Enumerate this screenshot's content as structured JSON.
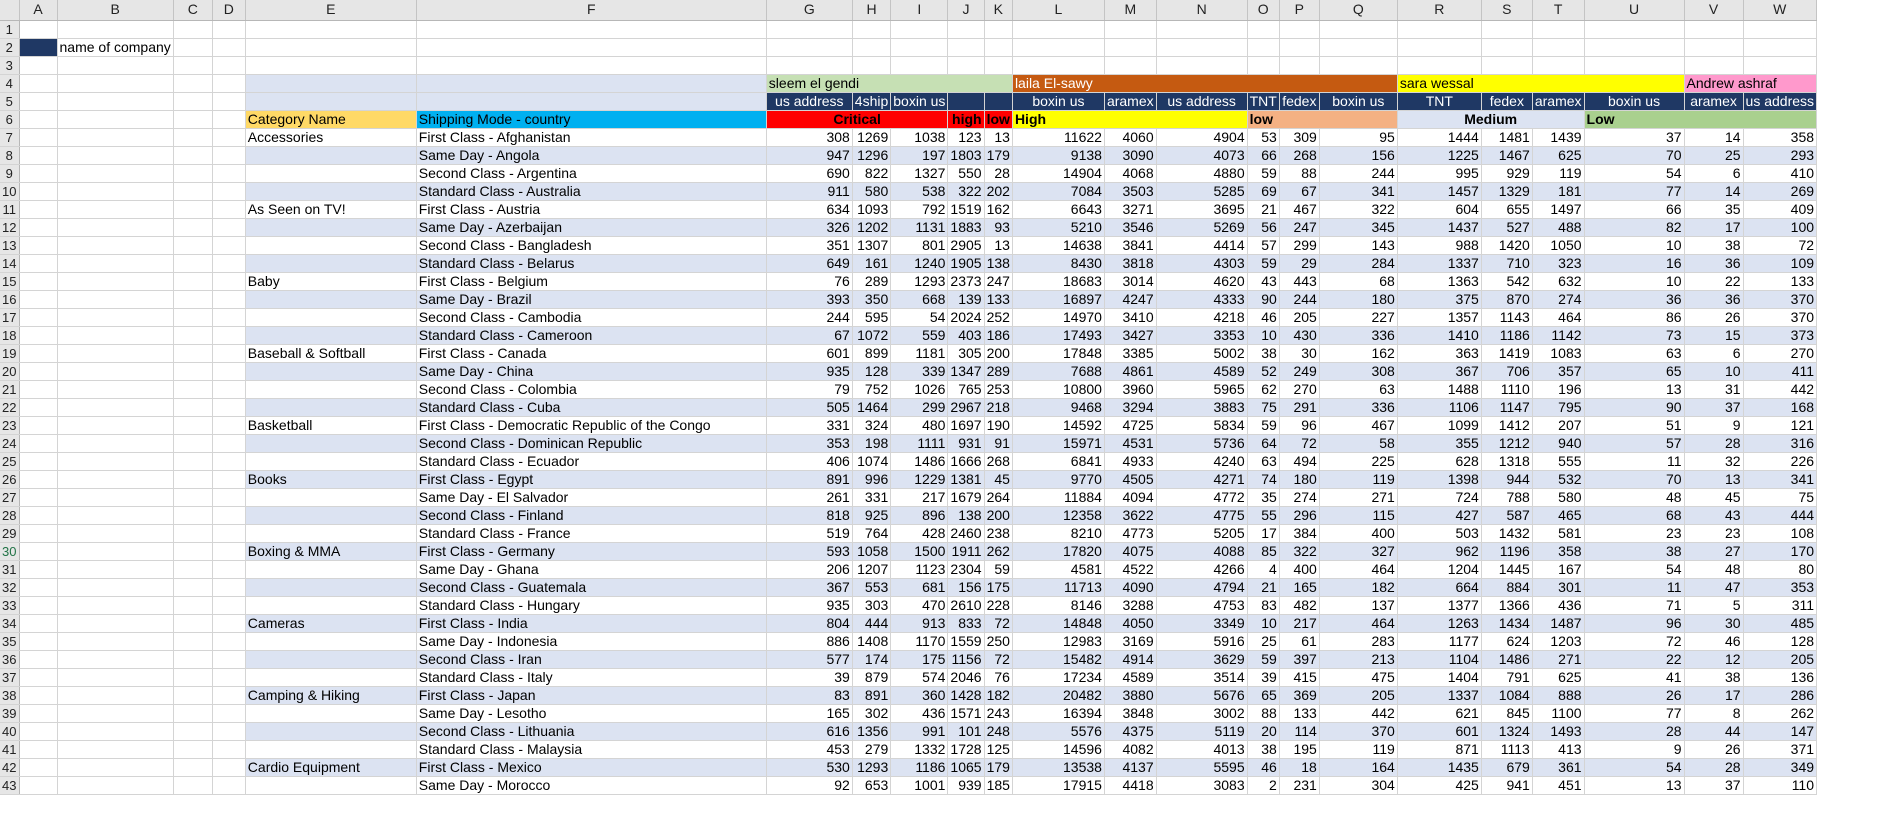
{
  "columns": [
    "",
    "A",
    "B",
    "C",
    "D",
    "E",
    "F",
    "G",
    "H",
    "I",
    "J",
    "K",
    "L",
    "M",
    "N",
    "O",
    "P",
    "Q",
    "R",
    "S",
    "T",
    "U",
    "V",
    "W"
  ],
  "label_cell": "name of company",
  "colors": {
    "navy": "#1f3864",
    "green": "#c6e0b4",
    "orange": "#c55a11",
    "yellow": "#ffff00",
    "pink": "#ff99cc",
    "band": "#dce3f2",
    "cat_header": "#ffd966",
    "ship_header": "#00b0f0",
    "critical": "#ff0000",
    "low_green": "#a9d08e",
    "low_orange": "#f4b183",
    "medium": "#dce3f2"
  },
  "groups": [
    {
      "name": "sleem el gendi",
      "color": "#c6e0b4"
    },
    {
      "name": "laila El-sawy",
      "color": "#c55a11"
    },
    {
      "name": "sara wessal",
      "color": "#ffff00"
    },
    {
      "name": "Andrew ashraf",
      "color": "#ff99cc"
    }
  ],
  "carriers": [
    "us address",
    "4ship",
    "boxin us",
    "",
    "",
    "boxin us",
    "aramex",
    "us address",
    "TNT",
    "fedex",
    "boxin us",
    "TNT",
    "fedex",
    "aramex",
    "boxin us",
    "aramex",
    "us address"
  ],
  "header_row": {
    "cat": "Category Name",
    "ship": "Shipping Mode - country",
    "critical": "Critical",
    "high": "high",
    "low": "low",
    "high2": "High",
    "low2": "low",
    "medium": "Medium",
    "low3": "Low"
  },
  "rows": [
    {
      "r": 7,
      "cat": "Accessories",
      "ship": "First Class - Afghanistan",
      "v": [
        308,
        1269,
        1038,
        123,
        13,
        11622,
        4060,
        4904,
        53,
        309,
        95,
        1444,
        1481,
        1439,
        37,
        14,
        358
      ]
    },
    {
      "r": 8,
      "cat": "",
      "ship": "Same Day - Angola",
      "v": [
        947,
        1296,
        197,
        1803,
        179,
        9138,
        3090,
        4073,
        66,
        268,
        156,
        1225,
        1467,
        625,
        70,
        25,
        293
      ]
    },
    {
      "r": 9,
      "cat": "",
      "ship": "Second Class - Argentina",
      "v": [
        690,
        822,
        1327,
        550,
        28,
        14904,
        4068,
        4880,
        59,
        88,
        244,
        995,
        929,
        119,
        54,
        6,
        410
      ]
    },
    {
      "r": 10,
      "cat": "",
      "ship": "Standard Class - Australia",
      "v": [
        911,
        580,
        538,
        322,
        202,
        7084,
        3503,
        5285,
        69,
        67,
        341,
        1457,
        1329,
        181,
        77,
        14,
        269
      ]
    },
    {
      "r": 11,
      "cat": "As Seen on  TV!",
      "ship": "First Class - Austria",
      "v": [
        634,
        1093,
        792,
        1519,
        162,
        6643,
        3271,
        3695,
        21,
        467,
        322,
        604,
        655,
        1497,
        66,
        35,
        409
      ]
    },
    {
      "r": 12,
      "cat": "",
      "ship": "Same Day - Azerbaijan",
      "v": [
        326,
        1202,
        1131,
        1883,
        93,
        5210,
        3546,
        5269,
        56,
        247,
        345,
        1437,
        527,
        488,
        82,
        17,
        100
      ]
    },
    {
      "r": 13,
      "cat": "",
      "ship": "Second Class - Bangladesh",
      "v": [
        351,
        1307,
        801,
        2905,
        13,
        14638,
        3841,
        4414,
        57,
        299,
        143,
        988,
        1420,
        1050,
        10,
        38,
        72
      ]
    },
    {
      "r": 14,
      "cat": "",
      "ship": "Standard Class - Belarus",
      "v": [
        649,
        161,
        1240,
        1905,
        138,
        8430,
        3818,
        4303,
        59,
        29,
        284,
        1337,
        710,
        323,
        16,
        36,
        109
      ]
    },
    {
      "r": 15,
      "cat": "Baby",
      "ship": "First Class - Belgium",
      "v": [
        76,
        289,
        1293,
        2373,
        247,
        18683,
        3014,
        4620,
        43,
        443,
        68,
        1363,
        542,
        632,
        10,
        22,
        133
      ]
    },
    {
      "r": 16,
      "cat": "",
      "ship": "Same Day - Brazil",
      "v": [
        393,
        350,
        668,
        139,
        133,
        16897,
        4247,
        4333,
        90,
        244,
        180,
        375,
        870,
        274,
        36,
        36,
        370
      ]
    },
    {
      "r": 17,
      "cat": "",
      "ship": "Second Class - Cambodia",
      "v": [
        244,
        595,
        54,
        2024,
        252,
        14970,
        3410,
        4218,
        46,
        205,
        227,
        1357,
        1143,
        464,
        86,
        26,
        370
      ]
    },
    {
      "r": 18,
      "cat": "",
      "ship": "Standard Class - Cameroon",
      "v": [
        67,
        1072,
        559,
        403,
        186,
        17493,
        3427,
        3353,
        10,
        430,
        336,
        1410,
        1186,
        1142,
        73,
        15,
        373
      ]
    },
    {
      "r": 19,
      "cat": "Baseball & Softball",
      "ship": "First Class - Canada",
      "v": [
        601,
        899,
        1181,
        305,
        200,
        17848,
        3385,
        5002,
        38,
        30,
        162,
        363,
        1419,
        1083,
        63,
        6,
        270
      ]
    },
    {
      "r": 20,
      "cat": "",
      "ship": "Same Day - China",
      "v": [
        935,
        128,
        339,
        1347,
        289,
        7688,
        4861,
        4589,
        52,
        249,
        308,
        367,
        706,
        357,
        65,
        10,
        411
      ]
    },
    {
      "r": 21,
      "cat": "",
      "ship": "Second Class - Colombia",
      "v": [
        79,
        752,
        1026,
        765,
        253,
        10800,
        3960,
        5965,
        62,
        270,
        63,
        1488,
        1110,
        196,
        13,
        31,
        442
      ]
    },
    {
      "r": 22,
      "cat": "",
      "ship": "Standard Class - Cuba",
      "v": [
        505,
        1464,
        299,
        2967,
        218,
        9468,
        3294,
        3883,
        75,
        291,
        336,
        1106,
        1147,
        795,
        90,
        37,
        168
      ]
    },
    {
      "r": 23,
      "cat": "Basketball",
      "ship": "First Class - Democratic Republic of the Congo",
      "v": [
        331,
        324,
        480,
        1697,
        190,
        14592,
        4725,
        5834,
        59,
        96,
        467,
        1099,
        1412,
        207,
        51,
        9,
        121
      ]
    },
    {
      "r": 24,
      "cat": "",
      "ship": "Second Class - Dominican Republic",
      "v": [
        353,
        198,
        1111,
        931,
        91,
        15971,
        4531,
        5736,
        64,
        72,
        58,
        355,
        1212,
        940,
        57,
        28,
        316
      ]
    },
    {
      "r": 25,
      "cat": "",
      "ship": "Standard Class - Ecuador",
      "v": [
        406,
        1074,
        1486,
        1666,
        268,
        6841,
        4933,
        4240,
        63,
        494,
        225,
        628,
        1318,
        555,
        11,
        32,
        226
      ]
    },
    {
      "r": 26,
      "cat": "Books",
      "ship": "First Class - Egypt",
      "v": [
        891,
        996,
        1229,
        1381,
        45,
        9770,
        4505,
        4271,
        74,
        180,
        119,
        1398,
        944,
        532,
        70,
        13,
        341
      ]
    },
    {
      "r": 27,
      "cat": "",
      "ship": "Same Day - El Salvador",
      "v": [
        261,
        331,
        217,
        1679,
        264,
        11884,
        4094,
        4772,
        35,
        274,
        271,
        724,
        788,
        580,
        48,
        45,
        75
      ]
    },
    {
      "r": 28,
      "cat": "",
      "ship": "Second Class - Finland",
      "v": [
        818,
        925,
        896,
        138,
        200,
        12358,
        3622,
        4775,
        55,
        296,
        115,
        427,
        587,
        465,
        68,
        43,
        444
      ]
    },
    {
      "r": 29,
      "cat": "",
      "ship": "Standard Class - France",
      "v": [
        519,
        764,
        428,
        2460,
        238,
        8210,
        4773,
        5205,
        17,
        384,
        400,
        503,
        1432,
        581,
        23,
        23,
        108
      ]
    },
    {
      "r": 30,
      "cat": "Boxing & MMA",
      "ship": "First Class - Germany",
      "v": [
        593,
        1058,
        1500,
        1911,
        262,
        17820,
        4075,
        4088,
        85,
        322,
        327,
        962,
        1196,
        358,
        38,
        27,
        170
      ]
    },
    {
      "r": 31,
      "cat": "",
      "ship": "Same Day - Ghana",
      "v": [
        206,
        1207,
        1123,
        2304,
        59,
        4581,
        4522,
        4266,
        4,
        400,
        464,
        1204,
        1445,
        167,
        54,
        48,
        80
      ]
    },
    {
      "r": 32,
      "cat": "",
      "ship": "Second Class - Guatemala",
      "v": [
        367,
        553,
        681,
        156,
        175,
        11713,
        4090,
        4794,
        21,
        165,
        182,
        664,
        884,
        301,
        11,
        47,
        353
      ]
    },
    {
      "r": 33,
      "cat": "",
      "ship": "Standard Class - Hungary",
      "v": [
        935,
        303,
        470,
        2610,
        228,
        8146,
        3288,
        4753,
        83,
        482,
        137,
        1377,
        1366,
        436,
        71,
        5,
        311
      ]
    },
    {
      "r": 34,
      "cat": "Cameras",
      "ship": "First Class - India",
      "v": [
        804,
        444,
        913,
        833,
        72,
        14848,
        4050,
        3349,
        10,
        217,
        464,
        1263,
        1434,
        1487,
        96,
        30,
        485
      ]
    },
    {
      "r": 35,
      "cat": "",
      "ship": "Same Day - Indonesia",
      "v": [
        886,
        1408,
        1170,
        1559,
        250,
        12983,
        3169,
        5916,
        25,
        61,
        283,
        1177,
        624,
        1203,
        72,
        46,
        128
      ]
    },
    {
      "r": 36,
      "cat": "",
      "ship": "Second Class - Iran",
      "v": [
        577,
        174,
        175,
        1156,
        72,
        15482,
        4914,
        3629,
        59,
        397,
        213,
        1104,
        1486,
        271,
        22,
        12,
        205
      ]
    },
    {
      "r": 37,
      "cat": "",
      "ship": "Standard Class - Italy",
      "v": [
        39,
        879,
        574,
        2046,
        76,
        17234,
        4589,
        3514,
        39,
        415,
        475,
        1404,
        791,
        625,
        41,
        38,
        136
      ]
    },
    {
      "r": 38,
      "cat": "Camping & Hiking",
      "ship": "First Class - Japan",
      "v": [
        83,
        891,
        360,
        1428,
        182,
        20482,
        3880,
        5676,
        65,
        369,
        205,
        1337,
        1084,
        888,
        26,
        17,
        286
      ]
    },
    {
      "r": 39,
      "cat": "",
      "ship": "Same Day - Lesotho",
      "v": [
        165,
        302,
        436,
        1571,
        243,
        16394,
        3848,
        3002,
        88,
        133,
        442,
        621,
        845,
        1100,
        77,
        8,
        262
      ]
    },
    {
      "r": 40,
      "cat": "",
      "ship": "Second Class - Lithuania",
      "v": [
        616,
        1356,
        991,
        101,
        248,
        5576,
        4375,
        5119,
        20,
        114,
        370,
        601,
        1324,
        1493,
        28,
        44,
        147
      ]
    },
    {
      "r": 41,
      "cat": "",
      "ship": "Standard Class - Malaysia",
      "v": [
        453,
        279,
        1332,
        1728,
        125,
        14596,
        4082,
        4013,
        38,
        195,
        119,
        871,
        1113,
        413,
        9,
        26,
        371
      ]
    },
    {
      "r": 42,
      "cat": "Cardio Equipment",
      "ship": "First Class - Mexico",
      "v": [
        530,
        1293,
        1186,
        1065,
        179,
        13538,
        4137,
        5595,
        46,
        18,
        164,
        1435,
        679,
        361,
        54,
        28,
        349
      ]
    },
    {
      "r": 43,
      "cat": "",
      "ship": "Same Day - Morocco",
      "v": [
        92,
        653,
        1001,
        939,
        185,
        17915,
        4418,
        3083,
        2,
        231,
        304,
        425,
        941,
        451,
        13,
        37,
        110
      ]
    }
  ],
  "empty_rows": [
    1,
    2,
    3,
    4,
    5,
    6
  ],
  "selected_row": 30
}
